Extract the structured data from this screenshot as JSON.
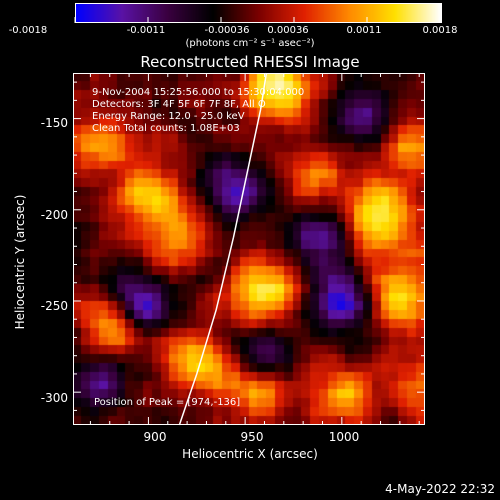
{
  "colorbar": {
    "tick_labels": [
      "-0.0018",
      "-0.0011",
      "-0.00036",
      "0.00036",
      "0.0011",
      "0.0018"
    ],
    "units": "(photons cm⁻² s⁻¹ asec⁻²)",
    "range": [
      -0.0018,
      0.0018
    ],
    "colormap": [
      "#0000ff",
      "#5a12a5",
      "#3a0040",
      "#000000",
      "#7a0000",
      "#e02000",
      "#ff8a00",
      "#ffe000",
      "#ffffff"
    ]
  },
  "title": "Reconstructed RHESSI Image",
  "info": {
    "line1": "9-Nov-2004 15:25:56.000 to 15:30:04.000",
    "line2": "Detectors: 3F 4F 5F 6F 7F 8F, All O",
    "line3": "Energy Range: 12.0 - 25.0 keV",
    "line4": "Clean     Total counts: 1.08E+03"
  },
  "peak_text": "Position of Peak = [974,-136]",
  "timestamp": "4-May-2022 22:32",
  "chart_data": {
    "type": "heatmap",
    "title": "Reconstructed RHESSI Image",
    "xlabel": "Heliocentric X (arcsec)",
    "ylabel": "Heliocentric Y (arcsec)",
    "xlim": [
      861,
      1043
    ],
    "ylim": [
      -318,
      -125
    ],
    "x_ticks": [
      900,
      950,
      1000
    ],
    "y_ticks": [
      -150,
      -200,
      -250,
      -300
    ],
    "x_tick_labels": [
      "900",
      "950",
      "1000"
    ],
    "y_tick_labels": [
      "-150",
      "-200",
      "-250",
      "-300"
    ],
    "limb_curve": {
      "points": [
        [
          916,
          -318
        ],
        [
          925,
          -290
        ],
        [
          935,
          -255
        ],
        [
          944,
          -215
        ],
        [
          952,
          -175
        ],
        [
          958,
          -145
        ],
        [
          961,
          -125
        ]
      ]
    },
    "peak_position": [
      974,
      -136
    ],
    "grid_size": [
      40,
      40
    ],
    "seed": 20041109,
    "hotspots": [
      {
        "x": 968,
        "y": -132,
        "amp": 1.0,
        "sigma": 12
      },
      {
        "x": 1020,
        "y": -205,
        "amp": 0.9,
        "sigma": 13
      },
      {
        "x": 1030,
        "y": -248,
        "amp": 0.8,
        "sigma": 13
      },
      {
        "x": 960,
        "y": -245,
        "amp": 0.85,
        "sigma": 12
      },
      {
        "x": 925,
        "y": -285,
        "amp": 0.7,
        "sigma": 12
      },
      {
        "x": 900,
        "y": -190,
        "amp": 0.7,
        "sigma": 12
      },
      {
        "x": 875,
        "y": -165,
        "amp": 0.6,
        "sigma": 11
      },
      {
        "x": 985,
        "y": -180,
        "amp": 0.55,
        "sigma": 11
      },
      {
        "x": 880,
        "y": -265,
        "amp": 0.6,
        "sigma": 11
      },
      {
        "x": 1035,
        "y": -165,
        "amp": 0.6,
        "sigma": 11
      },
      {
        "x": 1000,
        "y": -300,
        "amp": 0.65,
        "sigma": 12
      },
      {
        "x": 955,
        "y": -300,
        "amp": 0.55,
        "sigma": 11
      },
      {
        "x": 915,
        "y": -215,
        "amp": 0.6,
        "sigma": 11
      },
      {
        "x": 1040,
        "y": -300,
        "amp": 0.55,
        "sigma": 11
      }
    ],
    "coldspots": [
      {
        "x": 895,
        "y": -250,
        "amp": 0.9,
        "sigma": 10
      },
      {
        "x": 1000,
        "y": -250,
        "amp": 0.9,
        "sigma": 12
      },
      {
        "x": 990,
        "y": -215,
        "amp": 0.7,
        "sigma": 11
      },
      {
        "x": 875,
        "y": -295,
        "amp": 0.6,
        "sigma": 10
      },
      {
        "x": 945,
        "y": -190,
        "amp": 0.7,
        "sigma": 11
      },
      {
        "x": 1010,
        "y": -150,
        "amp": 0.6,
        "sigma": 11
      },
      {
        "x": 960,
        "y": -280,
        "amp": 0.5,
        "sigma": 10
      }
    ]
  }
}
